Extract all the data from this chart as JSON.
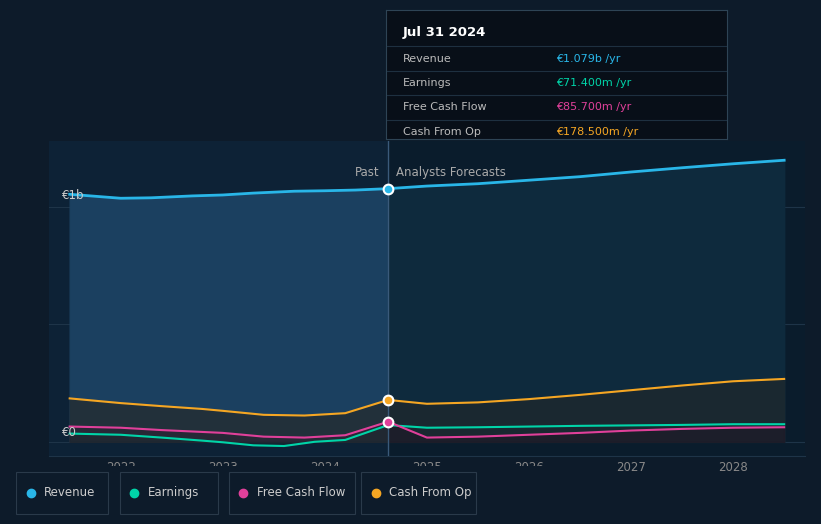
{
  "bg_color": "#0d1b2a",
  "past_fill_color": "#0f2a40",
  "forecast_fill_color": "#0a1e30",
  "grid_color": "#1a2d3e",
  "title": "Jul 31 2024",
  "ylabel_1b": "€1b",
  "ylabel_0": "€0",
  "past_label": "Past",
  "forecast_label": "Analysts Forecasts",
  "divider_x": 2024.62,
  "x_ticks": [
    2022,
    2023,
    2024,
    2025,
    2026,
    2027,
    2028
  ],
  "xlim": [
    2021.3,
    2028.7
  ],
  "ylim": [
    -60000000.0,
    1280000000.0
  ],
  "revenue_color": "#29b6e8",
  "earnings_color": "#00d4a8",
  "fcf_color": "#e0409a",
  "cashop_color": "#f5a623",
  "revenue_x": [
    2021.5,
    2022.0,
    2022.3,
    2022.7,
    2023.0,
    2023.3,
    2023.7,
    2024.0,
    2024.3,
    2024.62,
    2025.0,
    2025.5,
    2026.0,
    2026.5,
    2027.0,
    2027.5,
    2028.0,
    2028.5
  ],
  "revenue_y": [
    1055000000.0,
    1038000000.0,
    1040000000.0,
    1048000000.0,
    1052000000.0,
    1060000000.0,
    1068000000.0,
    1070000000.0,
    1073000000.0,
    1079000000.0,
    1090000000.0,
    1100000000.0,
    1115000000.0,
    1130000000.0,
    1150000000.0,
    1168000000.0,
    1185000000.0,
    1200000000.0
  ],
  "earnings_x": [
    2021.5,
    2022.0,
    2022.4,
    2022.8,
    2023.0,
    2023.3,
    2023.6,
    2023.9,
    2024.2,
    2024.62,
    2025.0,
    2025.5,
    2026.0,
    2026.5,
    2027.0,
    2027.5,
    2028.0,
    2028.5
  ],
  "earnings_y": [
    35000000.0,
    30000000.0,
    18000000.0,
    5000000.0,
    -2000000.0,
    -15000000.0,
    -18000000.0,
    0.0,
    8000000.0,
    71400000.0,
    60000000.0,
    62000000.0,
    65000000.0,
    68000000.0,
    70000000.0,
    72000000.0,
    75000000.0,
    75000000.0
  ],
  "fcf_x": [
    2021.5,
    2022.0,
    2022.4,
    2022.8,
    2023.0,
    2023.4,
    2023.8,
    2024.2,
    2024.62,
    2025.0,
    2025.5,
    2026.0,
    2026.5,
    2027.0,
    2027.5,
    2028.0,
    2028.5
  ],
  "fcf_y": [
    65000000.0,
    60000000.0,
    50000000.0,
    42000000.0,
    38000000.0,
    22000000.0,
    18000000.0,
    28000000.0,
    85700000.0,
    18000000.0,
    22000000.0,
    30000000.0,
    38000000.0,
    48000000.0,
    55000000.0,
    60000000.0,
    62000000.0
  ],
  "cashop_x": [
    2021.5,
    2022.0,
    2022.4,
    2022.8,
    2023.0,
    2023.4,
    2023.8,
    2024.2,
    2024.62,
    2025.0,
    2025.5,
    2026.0,
    2026.5,
    2027.0,
    2027.5,
    2028.0,
    2028.5
  ],
  "cashop_y": [
    185000000.0,
    165000000.0,
    152000000.0,
    140000000.0,
    132000000.0,
    115000000.0,
    112000000.0,
    122000000.0,
    178500000.0,
    162000000.0,
    168000000.0,
    182000000.0,
    200000000.0,
    220000000.0,
    240000000.0,
    258000000.0,
    268000000.0
  ],
  "legend_items": [
    "Revenue",
    "Earnings",
    "Free Cash Flow",
    "Cash From Op"
  ],
  "legend_colors": [
    "#29b6e8",
    "#00d4a8",
    "#e0409a",
    "#f5a623"
  ],
  "tooltip_rows": [
    [
      "Revenue",
      "€1.079b /yr",
      "#29b6e8"
    ],
    [
      "Earnings",
      "€71.400m /yr",
      "#00d4a8"
    ],
    [
      "Free Cash Flow",
      "€85.700m /yr",
      "#e0409a"
    ],
    [
      "Cash From Op",
      "€178.500m /yr",
      "#f5a623"
    ]
  ]
}
